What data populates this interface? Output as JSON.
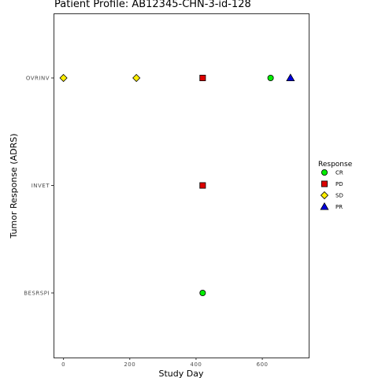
{
  "chart_data": {
    "type": "scatter",
    "title": "Patient Profile:  AB12345-CHN-3-id-128",
    "xlabel": "Study Day",
    "ylabel": "Tumor Response (ADRS)",
    "xlim": [
      -30,
      740
    ],
    "x_ticks": [
      0,
      200,
      400,
      600
    ],
    "categories": [
      "BESRSPI",
      "INVET",
      "OVRINV"
    ],
    "grid": false,
    "legend": {
      "title": "Response",
      "placement": "right",
      "entries": [
        {
          "label": "CR",
          "shape": "circle",
          "color": "#00ee00"
        },
        {
          "label": "PD",
          "shape": "square",
          "color": "#dd0000"
        },
        {
          "label": "SD",
          "shape": "diamond",
          "color": "#ffee00"
        },
        {
          "label": "PR",
          "shape": "triangle",
          "color": "#0000dd"
        }
      ]
    },
    "points": [
      {
        "x": 0,
        "y": "OVRINV",
        "response": "SD"
      },
      {
        "x": 220,
        "y": "OVRINV",
        "response": "SD"
      },
      {
        "x": 420,
        "y": "OVRINV",
        "response": "PD"
      },
      {
        "x": 625,
        "y": "OVRINV",
        "response": "CR"
      },
      {
        "x": 685,
        "y": "OVRINV",
        "response": "PR"
      },
      {
        "x": 420,
        "y": "INVET",
        "response": "PD"
      },
      {
        "x": 420,
        "y": "BESRSPI",
        "response": "CR"
      }
    ]
  }
}
